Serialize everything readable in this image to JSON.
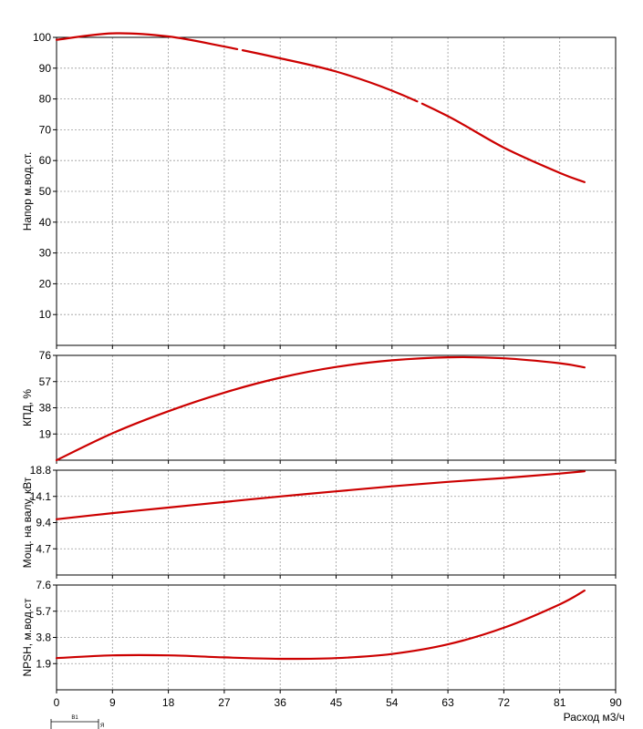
{
  "chart_data": [
    {
      "type": "line",
      "ylabel": "Напор м.вод.ст.",
      "ylim": [
        0,
        100
      ],
      "yticks": [
        "10",
        "20",
        "30",
        "40",
        "50",
        "60",
        "70",
        "80",
        "90",
        "100"
      ],
      "grid": true,
      "line_style": "dashed",
      "series": [
        {
          "x": [
            0,
            9,
            18,
            27,
            36,
            45,
            54,
            63,
            72,
            81,
            85
          ],
          "y": [
            99.2,
            101.3,
            100.3,
            97.0,
            93.2,
            88.9,
            82.7,
            74.4,
            64.2,
            56.0,
            53.0
          ]
        }
      ]
    },
    {
      "type": "line",
      "ylabel": "КПД, %",
      "ylim": [
        0,
        76
      ],
      "yticks": [
        "19",
        "38",
        "57",
        "76"
      ],
      "grid": true,
      "series": [
        {
          "x": [
            0,
            9,
            18,
            27,
            36,
            45,
            54,
            63,
            72,
            81,
            85
          ],
          "y": [
            0,
            19.5,
            35.5,
            49.0,
            59.8,
            67.6,
            72.4,
            74.6,
            73.9,
            70.3,
            67.3
          ]
        }
      ]
    },
    {
      "type": "line",
      "ylabel": "Мощ. на валу, кВт",
      "ylim": [
        0,
        18.8
      ],
      "yticks": [
        "4.7",
        "9.4",
        "14.1",
        "18.8"
      ],
      "grid": true,
      "series": [
        {
          "x": [
            0,
            9,
            18,
            27,
            36,
            45,
            54,
            63,
            72,
            81,
            85
          ],
          "y": [
            10.0,
            11.1,
            12.1,
            13.1,
            14.1,
            15.0,
            15.9,
            16.7,
            17.4,
            18.2,
            18.6
          ]
        }
      ]
    },
    {
      "type": "line",
      "ylabel": "NPSH, м.вод.ст",
      "ylim": [
        0,
        7.6
      ],
      "yticks": [
        "1.9",
        "3.8",
        "5.7",
        "7.6"
      ],
      "xlabel": "Расход м3/ч",
      "xlim": [
        0,
        90
      ],
      "xticks": [
        "0",
        "9",
        "18",
        "27",
        "36",
        "45",
        "54",
        "63",
        "72",
        "81",
        "90"
      ],
      "grid": true,
      "series": [
        {
          "x": [
            0,
            9,
            18,
            27,
            36,
            45,
            54,
            63,
            72,
            81,
            85
          ],
          "y": [
            2.3,
            2.5,
            2.5,
            2.35,
            2.25,
            2.3,
            2.6,
            3.3,
            4.5,
            6.2,
            7.2
          ]
        }
      ]
    }
  ],
  "marker": {
    "label": "B1",
    "note": "Я"
  },
  "colors": {
    "curve": "#cc0000",
    "grid": "#9a9a9a",
    "axis": "#000000"
  }
}
